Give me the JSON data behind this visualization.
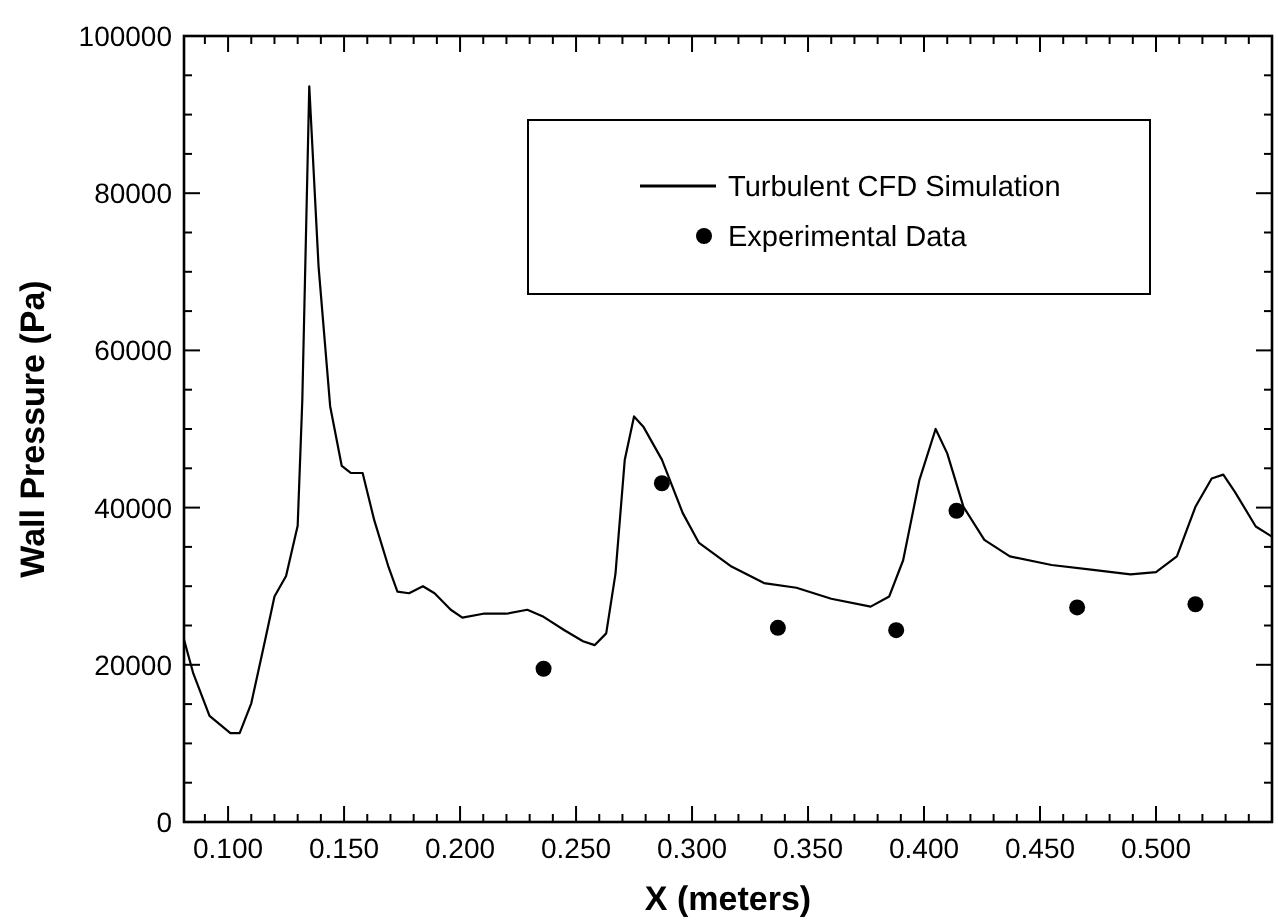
{
  "chart_data": {
    "type": "line",
    "xlabel": "X (meters)",
    "ylabel": "Wall Pressure (Pa)",
    "xlim": [
      0.081,
      0.55
    ],
    "ylim": [
      0,
      100000
    ],
    "xticks": [
      {
        "value": 0.09,
        "label": null
      },
      {
        "value": 0.1,
        "label": "0.100"
      },
      {
        "value": 0.11,
        "label": null
      },
      {
        "value": 0.12,
        "label": null
      },
      {
        "value": 0.13,
        "label": null
      },
      {
        "value": 0.14,
        "label": null
      },
      {
        "value": 0.15,
        "label": "0.150"
      },
      {
        "value": 0.16,
        "label": null
      },
      {
        "value": 0.17,
        "label": null
      },
      {
        "value": 0.18,
        "label": null
      },
      {
        "value": 0.19,
        "label": null
      },
      {
        "value": 0.2,
        "label": "0.200"
      },
      {
        "value": 0.21,
        "label": null
      },
      {
        "value": 0.22,
        "label": null
      },
      {
        "value": 0.23,
        "label": null
      },
      {
        "value": 0.24,
        "label": null
      },
      {
        "value": 0.25,
        "label": "0.250"
      },
      {
        "value": 0.26,
        "label": null
      },
      {
        "value": 0.27,
        "label": null
      },
      {
        "value": 0.28,
        "label": null
      },
      {
        "value": 0.29,
        "label": null
      },
      {
        "value": 0.3,
        "label": "0.300"
      },
      {
        "value": 0.31,
        "label": null
      },
      {
        "value": 0.32,
        "label": null
      },
      {
        "value": 0.33,
        "label": null
      },
      {
        "value": 0.34,
        "label": null
      },
      {
        "value": 0.35,
        "label": "0.350"
      },
      {
        "value": 0.36,
        "label": null
      },
      {
        "value": 0.37,
        "label": null
      },
      {
        "value": 0.38,
        "label": null
      },
      {
        "value": 0.39,
        "label": null
      },
      {
        "value": 0.4,
        "label": "0.400"
      },
      {
        "value": 0.41,
        "label": null
      },
      {
        "value": 0.42,
        "label": null
      },
      {
        "value": 0.43,
        "label": null
      },
      {
        "value": 0.44,
        "label": null
      },
      {
        "value": 0.45,
        "label": "0.450"
      },
      {
        "value": 0.46,
        "label": null
      },
      {
        "value": 0.47,
        "label": null
      },
      {
        "value": 0.48,
        "label": null
      },
      {
        "value": 0.49,
        "label": null
      },
      {
        "value": 0.5,
        "label": "0.500"
      },
      {
        "value": 0.51,
        "label": null
      },
      {
        "value": 0.52,
        "label": null
      },
      {
        "value": 0.53,
        "label": null
      },
      {
        "value": 0.54,
        "label": null
      }
    ],
    "yticks": [
      0,
      {
        "value": 5000,
        "label": null
      },
      {
        "value": 10000,
        "label": null
      },
      {
        "value": 15000,
        "label": null
      },
      20000,
      {
        "value": 25000,
        "label": null
      },
      {
        "value": 30000,
        "label": null
      },
      {
        "value": 35000,
        "label": null
      },
      40000,
      {
        "value": 45000,
        "label": null
      },
      {
        "value": 50000,
        "label": null
      },
      {
        "value": 55000,
        "label": null
      },
      60000,
      {
        "value": 65000,
        "label": null
      },
      {
        "value": 70000,
        "label": null
      },
      {
        "value": 75000,
        "label": null
      },
      80000,
      {
        "value": 85000,
        "label": null
      },
      {
        "value": 90000,
        "label": null
      },
      {
        "value": 95000,
        "label": null
      },
      100000
    ],
    "grid": false,
    "legend": "top right",
    "series": [
      {
        "name": "Turbulent CFD Simulation",
        "type": "line",
        "color": "#000000",
        "marker": "none",
        "line_style": "solid",
        "x": [
          0.081,
          0.085,
          0.092,
          0.101,
          0.105,
          0.11,
          0.116,
          0.12,
          0.125,
          0.13,
          0.132,
          0.135,
          0.139,
          0.144,
          0.149,
          0.153,
          0.158,
          0.163,
          0.169,
          0.173,
          0.178,
          0.184,
          0.189,
          0.196,
          0.201,
          0.21,
          0.22,
          0.229,
          0.236,
          0.245,
          0.253,
          0.258,
          0.263,
          0.267,
          0.271,
          0.275,
          0.279,
          0.287,
          0.296,
          0.303,
          0.317,
          0.331,
          0.345,
          0.36,
          0.377,
          0.385,
          0.391,
          0.398,
          0.405,
          0.41,
          0.417,
          0.426,
          0.437,
          0.455,
          0.472,
          0.489,
          0.5,
          0.509,
          0.517,
          0.524,
          0.529,
          0.534,
          0.543,
          0.55
        ],
        "values": [
          23200,
          18900,
          13500,
          11300,
          11300,
          15100,
          23200,
          28700,
          31300,
          37700,
          53700,
          93600,
          70700,
          52900,
          45300,
          44400,
          44400,
          38400,
          32600,
          29300,
          29100,
          30000,
          29100,
          27000,
          26000,
          26500,
          26500,
          27000,
          26100,
          24400,
          23000,
          22500,
          24000,
          31600,
          46100,
          51600,
          50300,
          46100,
          39300,
          35500,
          32500,
          30400,
          29800,
          28400,
          27400,
          28700,
          33300,
          43500,
          50000,
          46900,
          40100,
          35900,
          33800,
          32700,
          32100,
          31500,
          31800,
          33800,
          40100,
          43700,
          44200,
          42000,
          37600,
          36300
        ]
      },
      {
        "name": "Experimental Data",
        "type": "scatter",
        "color": "#000000",
        "marker": "circle",
        "x": [
          0.236,
          0.287,
          0.337,
          0.388,
          0.414,
          0.466,
          0.517
        ],
        "values": [
          19500,
          43100,
          24700,
          24400,
          39600,
          27300,
          27700
        ]
      }
    ]
  }
}
